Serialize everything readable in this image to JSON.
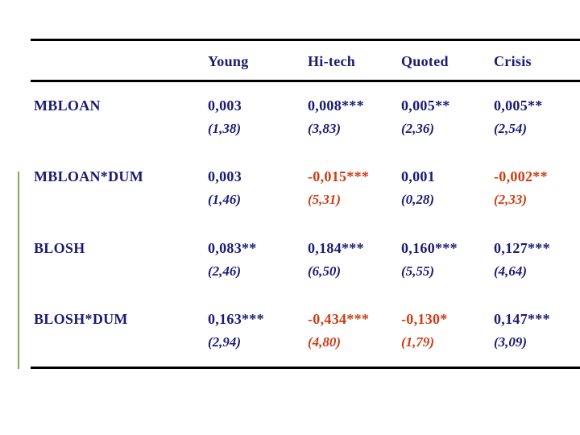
{
  "slide": {
    "background": "#ffffff"
  },
  "colors": {
    "navy": "#1b1b74",
    "red": "#cc3d14",
    "rule": "#000000",
    "accent_green": "#84a75c"
  },
  "table": {
    "columns": [
      "Young",
      "Hi-tech",
      "Quoted",
      "Crisis"
    ],
    "rows": [
      {
        "label": "MBLOAN",
        "cells": [
          {
            "coef": "0,003",
            "tstat": "(1,38)",
            "color": "navy"
          },
          {
            "coef": "0,008***",
            "tstat": "(3,83)",
            "color": "navy"
          },
          {
            "coef": "0,005**",
            "tstat": "(2,36)",
            "color": "navy"
          },
          {
            "coef": "0,005**",
            "tstat": "(2,54)",
            "color": "navy"
          }
        ]
      },
      {
        "label": "MBLOAN*DUM",
        "cells": [
          {
            "coef": "0,003",
            "tstat": "(1,46)",
            "color": "navy"
          },
          {
            "coef": "-0,015***",
            "tstat": "(5,31)",
            "color": "red"
          },
          {
            "coef": "0,001",
            "tstat": "(0,28)",
            "color": "navy"
          },
          {
            "coef": "-0,002**",
            "tstat": "(2,33)",
            "color": "red"
          }
        ]
      },
      {
        "label": "BLOSH",
        "cells": [
          {
            "coef": "0,083**",
            "tstat": "(2,46)",
            "color": "navy"
          },
          {
            "coef": "0,184***",
            "tstat": "(6,50)",
            "color": "navy"
          },
          {
            "coef": "0,160***",
            "tstat": "(5,55)",
            "color": "navy"
          },
          {
            "coef": "0,127***",
            "tstat": "(4,64)",
            "color": "navy"
          }
        ]
      },
      {
        "label": "BLOSH*DUM",
        "cells": [
          {
            "coef": "0,163***",
            "tstat": "(2,94)",
            "color": "navy"
          },
          {
            "coef": "-0,434***",
            "tstat": "(4,80)",
            "color": "red"
          },
          {
            "coef": "-0,130*",
            "tstat": "(1,79)",
            "color": "red"
          },
          {
            "coef": "0,147***",
            "tstat": "(3,09)",
            "color": "navy"
          }
        ]
      }
    ]
  }
}
